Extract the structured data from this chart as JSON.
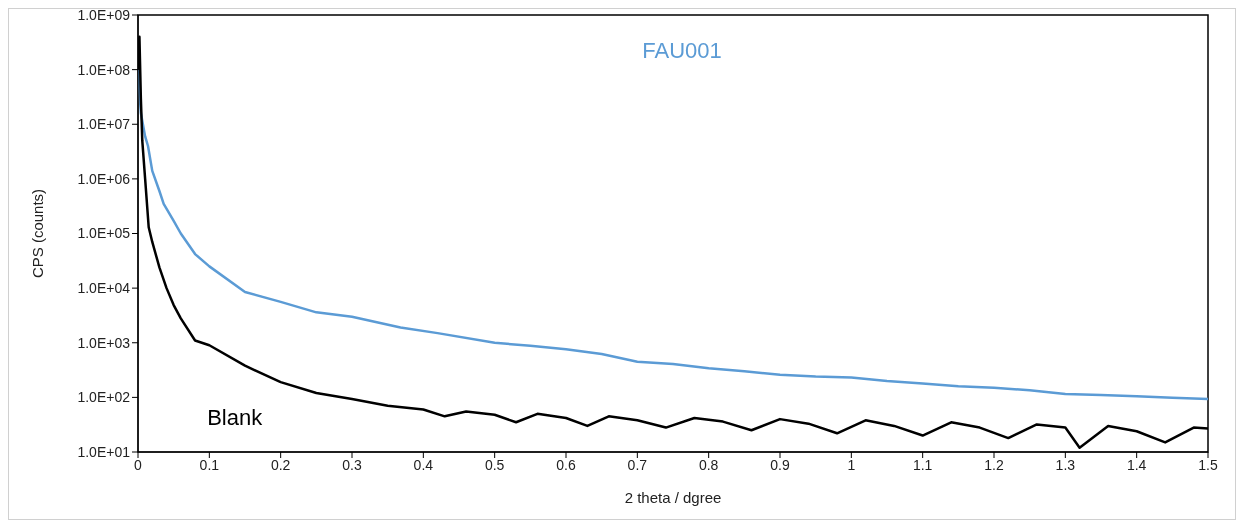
{
  "chart_data": {
    "type": "line",
    "xlabel": "2 theta / dgree",
    "ylabel": "CPS (counts)",
    "log": "y",
    "xlim": [
      0,
      1.5
    ],
    "xticks": [
      0,
      0.1,
      0.2,
      0.3,
      0.4,
      0.5,
      0.6,
      0.7,
      0.8,
      0.9,
      1,
      1.1,
      1.2,
      1.3,
      1.4,
      1.5
    ],
    "ylim": [
      10,
      1000000000
    ],
    "yticks": [
      {
        "value": 10,
        "label": "1.0E+01"
      },
      {
        "value": 100,
        "label": "1.0E+02"
      },
      {
        "value": 1000,
        "label": "1.0E+03"
      },
      {
        "value": 10000,
        "label": "1.0E+04"
      },
      {
        "value": 100000,
        "label": "1.0E+05"
      },
      {
        "value": 1000000,
        "label": "1.0E+06"
      },
      {
        "value": 10000000,
        "label": "1.0E+07"
      },
      {
        "value": 100000000,
        "label": "1.0E+08"
      },
      {
        "value": 1000000000,
        "label": "1.0E+09"
      }
    ],
    "marker": "none",
    "line_style": "solid",
    "series": [
      {
        "name": "FAU001",
        "color": "#5b9bd5",
        "x": [
          0,
          0.004,
          0.01,
          0.014,
          0.02,
          0.03,
          0.036,
          0.05,
          0.06,
          0.08,
          0.1,
          0.15,
          0.2,
          0.25,
          0.3,
          0.368,
          0.42,
          0.5,
          0.55,
          0.6,
          0.65,
          0.7,
          0.75,
          0.8,
          0.85,
          0.9,
          0.95,
          1.0,
          1.05,
          1.1,
          1.15,
          1.2,
          1.25,
          1.3,
          1.35,
          1.4,
          1.45,
          1.5
        ],
        "values": [
          100000000,
          16000000,
          6000000,
          4000000,
          1400000,
          600000,
          350000,
          170000,
          100000,
          42000,
          25000,
          8500,
          5600,
          3600,
          3000,
          1900,
          1500,
          1000,
          880,
          760,
          620,
          450,
          410,
          340,
          300,
          260,
          240,
          230,
          200,
          180,
          160,
          150,
          135,
          115,
          110,
          105,
          98,
          93
        ]
      },
      {
        "name": "Blank",
        "color": "#000000",
        "x": [
          0,
          0.002,
          0.004,
          0.006,
          0.01,
          0.015,
          0.02,
          0.03,
          0.04,
          0.05,
          0.06,
          0.08,
          0.1,
          0.15,
          0.2,
          0.25,
          0.3,
          0.35,
          0.4,
          0.43,
          0.46,
          0.5,
          0.53,
          0.56,
          0.6,
          0.63,
          0.66,
          0.7,
          0.74,
          0.78,
          0.82,
          0.86,
          0.9,
          0.94,
          0.98,
          1.02,
          1.06,
          1.1,
          1.14,
          1.18,
          1.22,
          1.26,
          1.3,
          1.32,
          1.36,
          1.4,
          1.44,
          1.48,
          1.5
        ],
        "values": [
          100000000,
          400000000,
          30000000,
          5000000,
          1000000,
          130000,
          70000,
          24000,
          10000,
          4900,
          2800,
          1100,
          900,
          380,
          190,
          120,
          93,
          70,
          60,
          45,
          55,
          48,
          35,
          50,
          42,
          30,
          45,
          38,
          28,
          42,
          36,
          25,
          40,
          33,
          22,
          38,
          30,
          20,
          35,
          28,
          18,
          32,
          28,
          12,
          30,
          24,
          15,
          28,
          27
        ]
      }
    ]
  }
}
